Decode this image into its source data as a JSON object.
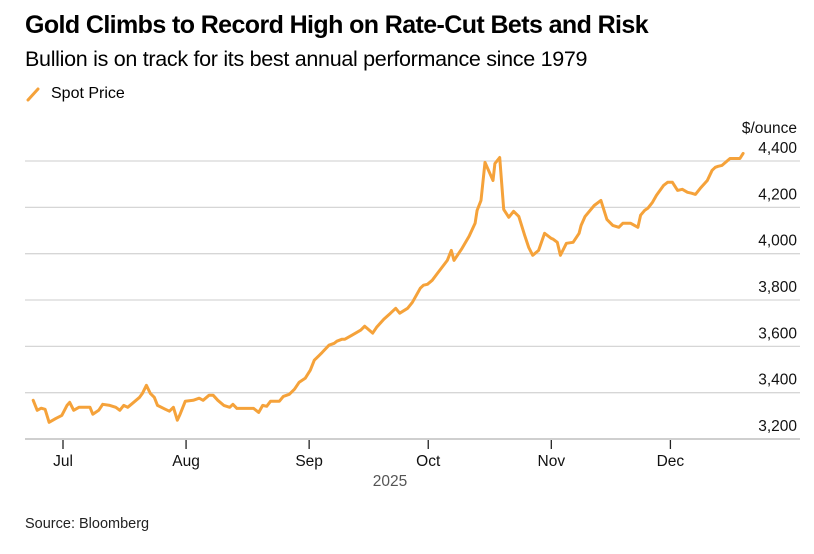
{
  "header": {
    "title": "Gold Climbs to Record High on Rate-Cut Bets and Risk",
    "subtitle": "Bullion is on track for its best annual performance since 1979"
  },
  "footer": {
    "source": "Source: Bloomberg"
  },
  "colors": {
    "series": "#f5a23a",
    "grid": "#d6d6d6",
    "axis": "#cfcfcf"
  },
  "chart_data": {
    "type": "line",
    "title": "Gold Climbs to Record High on Rate-Cut Bets and Risk",
    "subtitle": "Bullion is on track for its best annual performance since 1979",
    "xlabel": "2025",
    "ylabel": "$/ounce",
    "y_unit_label": "$/ounce",
    "ylim": [
      3150,
      4400
    ],
    "yticks": [
      3200,
      3400,
      3600,
      3800,
      4000,
      4200,
      4400
    ],
    "ytick_labels": [
      "3,200",
      "3,400",
      "3,600",
      "3,800",
      "4,000",
      "4,200",
      "4,400"
    ],
    "xticks": [
      "Jul",
      "Aug",
      "Sep",
      "Oct",
      "Nov",
      "Dec"
    ],
    "xtick_days": [
      0,
      31,
      62,
      92,
      123,
      153
    ],
    "x_day_range": [
      -7.5,
      172
    ],
    "x_origin": "2025-07-01",
    "grid": true,
    "legend": {
      "position": "top-left",
      "entries": [
        "Spot Price"
      ]
    },
    "series": [
      {
        "name": "Spot Price",
        "days": [
          -7.5,
          -6.5,
          -5.5,
          -4.5,
          -3.5,
          -1.8,
          -0.3,
          1,
          1.7,
          2.7,
          4,
          5.8,
          6.8,
          7.5,
          9,
          10,
          11.8,
          13.3,
          14.3,
          15.3,
          16.3,
          17.5,
          19.3,
          20,
          21,
          22,
          23,
          23.8,
          25.8,
          26.8,
          27.8,
          28.8,
          29.5,
          30.8,
          32.8,
          34.3,
          35.3,
          36.8,
          37.8,
          39,
          40.5,
          42,
          42.8,
          43.8,
          45.5,
          48,
          49.3,
          50.3,
          51.3,
          52.3,
          54.5,
          55.5,
          57,
          58.3,
          59.5,
          61,
          62.3,
          63.3,
          64.3,
          65.3,
          67,
          68.3,
          69,
          70.3,
          71,
          72.8,
          75,
          76,
          78,
          79,
          80.8,
          82.5,
          83.8,
          84.8,
          86.8,
          88,
          90,
          90.8,
          91.8,
          93,
          94.3,
          96.8,
          97.8,
          98.5,
          100.5,
          102.3,
          103.8,
          104.3,
          105.3,
          106.3,
          108.3,
          108.8,
          110,
          111,
          112.3,
          113.5,
          114.8,
          116.3,
          117.3,
          118.3,
          119.8,
          121.3,
          123,
          123.5,
          124.5,
          125.3,
          126.8,
          128.5,
          130,
          130.5,
          131.5,
          133.8,
          135.5,
          137,
          138.5,
          140,
          141,
          143,
          144.8,
          145.5,
          146.5,
          147.3,
          148.5,
          149.5,
          151.3,
          152.3,
          153.5,
          154.8,
          156,
          157.3,
          158.3,
          159.3,
          160.5,
          162.3,
          163.5,
          164.3,
          165,
          166,
          168,
          170.5,
          171.3
        ],
        "values": [
          3367,
          3324,
          3333,
          3328,
          3272,
          3289,
          3302,
          3345,
          3358,
          3324,
          3337,
          3337,
          3337,
          3307,
          3324,
          3350,
          3345,
          3337,
          3324,
          3345,
          3337,
          3354,
          3380,
          3397,
          3432,
          3397,
          3380,
          3345,
          3328,
          3320,
          3337,
          3281,
          3307,
          3363,
          3367,
          3376,
          3367,
          3389,
          3389,
          3367,
          3345,
          3337,
          3350,
          3332,
          3332,
          3332,
          3315,
          3345,
          3341,
          3363,
          3363,
          3384,
          3393,
          3415,
          3445,
          3462,
          3497,
          3540,
          3557,
          3574,
          3605,
          3613,
          3622,
          3631,
          3631,
          3648,
          3670,
          3687,
          3657,
          3682,
          3717,
          3743,
          3764,
          3743,
          3764,
          3790,
          3851,
          3864,
          3868,
          3885,
          3915,
          3971,
          4014,
          3971,
          4023,
          4075,
          4131,
          4187,
          4230,
          4394,
          4316,
          4389,
          4415,
          4191,
          4157,
          4183,
          4161,
          4079,
          4027,
          3993,
          4014,
          4088,
          4066,
          4062,
          4049,
          3993,
          4045,
          4049,
          4088,
          4122,
          4161,
          4208,
          4230,
          4148,
          4122,
          4114,
          4131,
          4131,
          4114,
          4166,
          4187,
          4196,
          4222,
          4252,
          4295,
          4308,
          4308,
          4273,
          4278,
          4265,
          4261,
          4256,
          4282,
          4316,
          4360,
          4373,
          4377,
          4381,
          4411,
          4411,
          4433,
          4433
        ]
      }
    ]
  }
}
